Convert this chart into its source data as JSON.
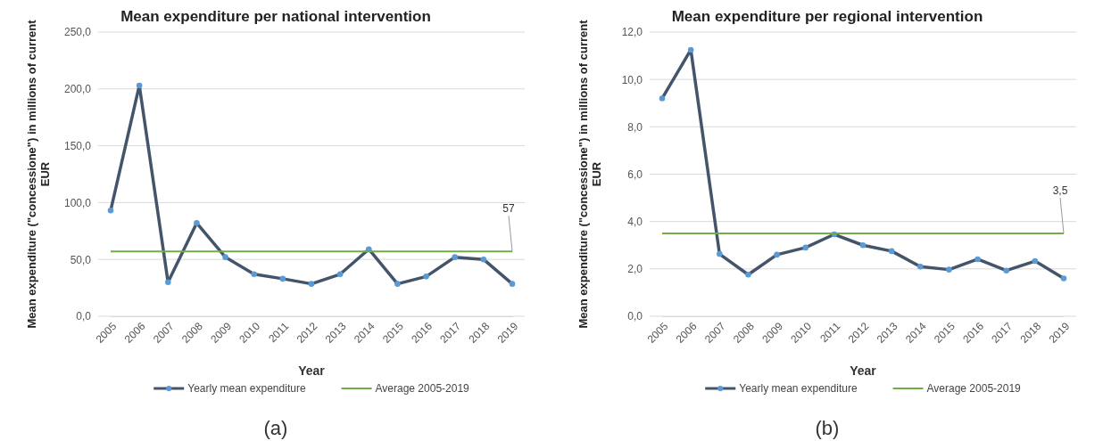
{
  "chart_data": [
    {
      "type": "line",
      "title": "Mean expenditure per national intervention",
      "xlabel": "Year",
      "ylabel": "Mean expenditure (\"concessione\") in millions of current EUR",
      "categories": [
        "2005",
        "2006",
        "2007",
        "2008",
        "2009",
        "2010",
        "2011",
        "2012",
        "2013",
        "2014",
        "2015",
        "2016",
        "2017",
        "2018",
        "2019"
      ],
      "series": [
        {
          "name": "Yearly mean expenditure",
          "color": "#44546a",
          "marker": "circle",
          "values": [
            93,
            203,
            30,
            82,
            52,
            37,
            33,
            28.5,
            37,
            59,
            28.5,
            35,
            52,
            50,
            28.5
          ]
        },
        {
          "name": "Average 2005-2019",
          "color": "#70ad47",
          "marker": "none",
          "values": [
            57,
            57,
            57,
            57,
            57,
            57,
            57,
            57,
            57,
            57,
            57,
            57,
            57,
            57,
            57
          ],
          "value_labels": [
            null,
            null,
            null,
            null,
            null,
            null,
            null,
            null,
            null,
            null,
            null,
            null,
            null,
            null,
            "57"
          ]
        }
      ],
      "ylim": [
        0,
        250
      ],
      "yticks": [
        {
          "value": 0,
          "label": "0,0"
        },
        {
          "value": 50,
          "label": "50,0"
        },
        {
          "value": 100,
          "label": "100,0"
        },
        {
          "value": 150,
          "label": "150,0"
        },
        {
          "value": 200,
          "label": "200,0"
        },
        {
          "value": 250,
          "label": "250,0"
        }
      ],
      "grid": "y",
      "legend": "bottom",
      "annotations": [
        "(a)"
      ]
    },
    {
      "type": "line",
      "title": "Mean expenditure per regional intervention",
      "xlabel": "Year",
      "ylabel": "Mean expenditure (\"concessione\") in millions of current EUR",
      "categories": [
        "2005",
        "2006",
        "2007",
        "2008",
        "2009",
        "2010",
        "2011",
        "2012",
        "2013",
        "2014",
        "2015",
        "2016",
        "2017",
        "2018",
        "2019"
      ],
      "series": [
        {
          "name": "Yearly mean expenditure",
          "color": "#44546a",
          "marker": "circle",
          "values": [
            9.2,
            11.25,
            2.63,
            1.76,
            2.6,
            2.9,
            3.46,
            3.0,
            2.75,
            2.1,
            1.97,
            2.41,
            1.93,
            2.33,
            1.6
          ]
        },
        {
          "name": "Average 2005-2019",
          "color": "#70ad47",
          "marker": "none",
          "values": [
            3.5,
            3.5,
            3.5,
            3.5,
            3.5,
            3.5,
            3.5,
            3.5,
            3.5,
            3.5,
            3.5,
            3.5,
            3.5,
            3.5,
            3.5
          ],
          "value_labels": [
            null,
            null,
            null,
            null,
            null,
            null,
            null,
            null,
            null,
            null,
            null,
            null,
            null,
            null,
            "3,5"
          ]
        }
      ],
      "ylim": [
        0,
        12
      ],
      "yticks": [
        {
          "value": 0,
          "label": "0,0"
        },
        {
          "value": 2,
          "label": "2,0"
        },
        {
          "value": 4,
          "label": "4,0"
        },
        {
          "value": 6,
          "label": "6,0"
        },
        {
          "value": 8,
          "label": "8,0"
        },
        {
          "value": 10,
          "label": "10,0"
        },
        {
          "value": 12,
          "label": "12,0"
        }
      ],
      "grid": "y",
      "legend": "bottom",
      "annotations": [
        "(b)"
      ]
    }
  ]
}
